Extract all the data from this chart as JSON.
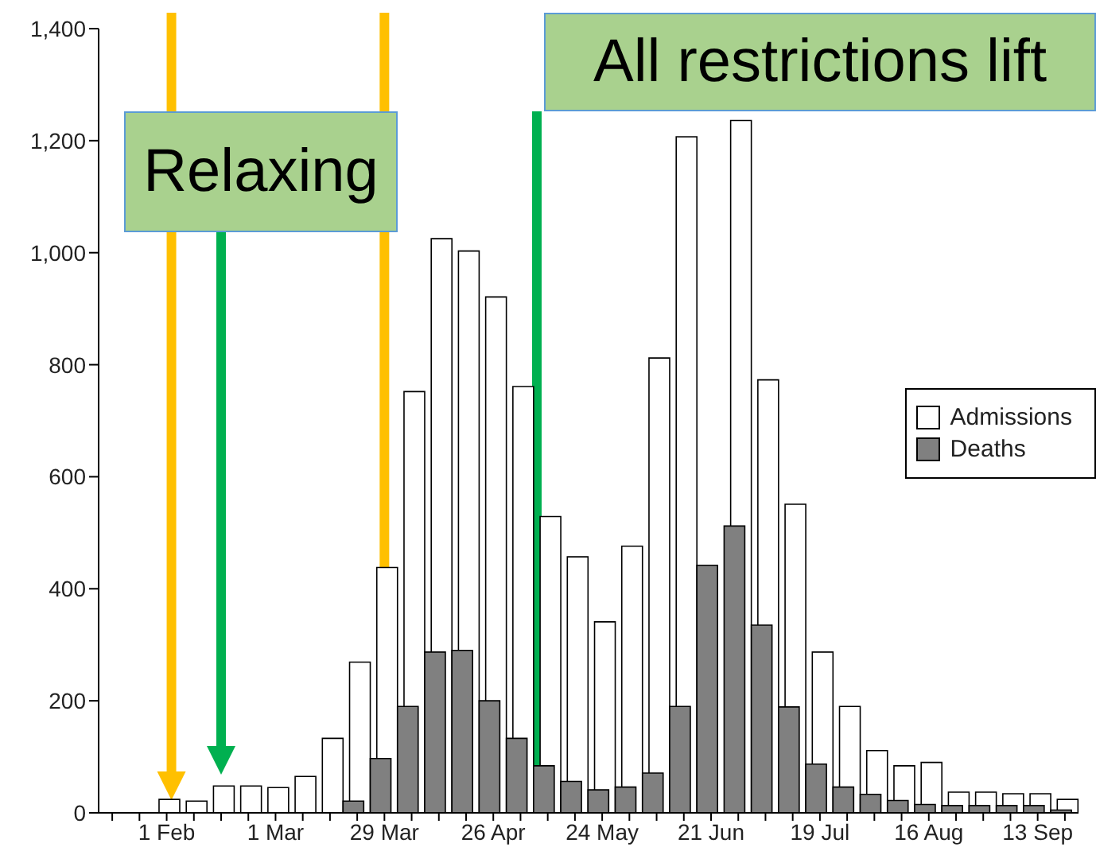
{
  "chart_data": {
    "type": "bar",
    "categories": [
      null,
      null,
      "1 Feb",
      null,
      null,
      null,
      "1 Mar",
      null,
      null,
      null,
      "29 Mar",
      null,
      null,
      null,
      "26 Apr",
      null,
      null,
      null,
      "24 May",
      null,
      null,
      null,
      "21 Jun",
      null,
      null,
      null,
      "19 Jul",
      null,
      null,
      null,
      "16 Aug",
      null,
      null,
      null,
      "13 Sep",
      null
    ],
    "series": [
      {
        "name": "Admissions",
        "color": "#ffffff",
        "values": [
          null,
          null,
          24,
          21,
          48,
          48,
          45,
          65,
          133,
          269,
          438,
          752,
          1025,
          1003,
          921,
          761,
          529,
          457,
          341,
          476,
          812,
          1207,
          null,
          1236,
          773,
          551,
          287,
          190,
          111,
          84,
          90,
          37,
          37,
          34,
          34,
          24
        ]
      },
      {
        "name": "Deaths",
        "color": "#808080",
        "values": [
          null,
          null,
          0,
          0,
          0,
          0,
          0,
          0,
          0,
          21,
          97,
          190,
          287,
          290,
          200,
          133,
          84,
          56,
          41,
          46,
          71,
          190,
          442,
          512,
          335,
          189,
          87,
          46,
          33,
          22,
          15,
          13,
          13,
          13,
          13,
          5
        ]
      }
    ],
    "ylim": [
      0,
      1400
    ],
    "yticks": [
      0,
      200,
      400,
      600,
      800,
      {
        "value": 1000,
        "label": "1,000"
      },
      {
        "value": 1200,
        "label": "1,200"
      },
      {
        "value": 1400,
        "label": "1,400"
      }
    ],
    "annotations": [
      "Relaxing",
      "All restrictions lift"
    ],
    "grid": false,
    "legend": "right"
  }
}
